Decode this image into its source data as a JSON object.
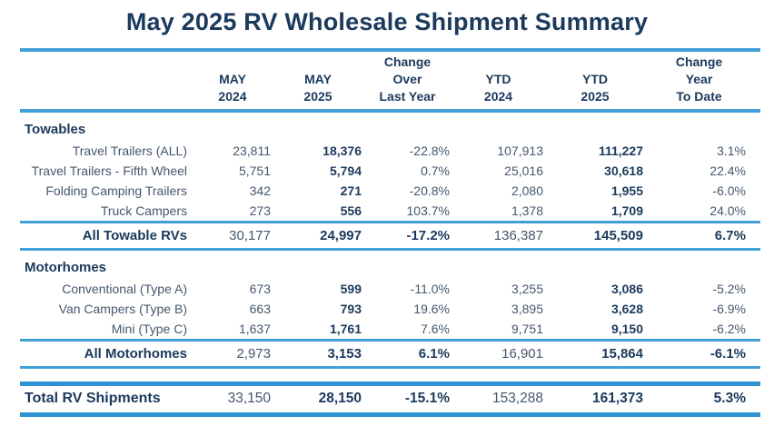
{
  "title": "May 2025 RV Wholesale Shipment Summary",
  "colors": {
    "navy_text": "#1b3a5c",
    "slate_text": "#45576d",
    "rule_blue": "#42a0d9"
  },
  "chart_data": {
    "type": "table",
    "title": "May 2025 RV Wholesale Shipment Summary",
    "header": {
      "cols": [
        {
          "lines": [
            "",
            "MAY",
            "2024"
          ]
        },
        {
          "lines": [
            "",
            "MAY",
            "2025"
          ]
        },
        {
          "lines": [
            "Change",
            "Over",
            "Last Year"
          ]
        },
        {
          "lines": [
            "",
            "YTD",
            "2024"
          ]
        },
        {
          "lines": [
            "",
            "YTD",
            "2025"
          ]
        },
        {
          "lines": [
            "Change",
            "Year",
            "To Date"
          ]
        }
      ]
    },
    "sections": [
      {
        "name": "Towables",
        "rows": [
          {
            "label": "Travel Trailers (ALL)",
            "values": [
              "23,811",
              "18,376",
              "-22.8%",
              "107,913",
              "111,227",
              "3.1%"
            ]
          },
          {
            "label": "Travel Trailers - Fifth Wheel",
            "values": [
              "5,751",
              "5,794",
              "0.7%",
              "25,016",
              "30,618",
              "22.4%"
            ]
          },
          {
            "label": "Folding Camping Trailers",
            "values": [
              "342",
              "271",
              "-20.8%",
              "2,080",
              "1,955",
              "-6.0%"
            ]
          },
          {
            "label": "Truck Campers",
            "values": [
              "273",
              "556",
              "103.7%",
              "1,378",
              "1,709",
              "24.0%"
            ]
          }
        ],
        "subtotal": {
          "label": "All Towable RVs",
          "values": [
            "30,177",
            "24,997",
            "-17.2%",
            "136,387",
            "145,509",
            "6.7%"
          ]
        }
      },
      {
        "name": "Motorhomes",
        "rows": [
          {
            "label": "Conventional (Type A)",
            "values": [
              "673",
              "599",
              "-11.0%",
              "3,255",
              "3,086",
              "-5.2%"
            ]
          },
          {
            "label": "Van Campers (Type B)",
            "values": [
              "663",
              "793",
              "19.6%",
              "3,895",
              "3,628",
              "-6.9%"
            ]
          },
          {
            "label": "Mini (Type C)",
            "values": [
              "1,637",
              "1,761",
              "7.6%",
              "9,751",
              "9,150",
              "-6.2%"
            ]
          }
        ],
        "subtotal": {
          "label": "All Motorhomes",
          "values": [
            "2,973",
            "3,153",
            "6.1%",
            "16,901",
            "15,864",
            "-6.1%"
          ]
        }
      }
    ],
    "total": {
      "label": "Total RV Shipments",
      "values": [
        "33,150",
        "28,150",
        "-15.1%",
        "153,288",
        "161,373",
        "5.3%"
      ]
    }
  }
}
